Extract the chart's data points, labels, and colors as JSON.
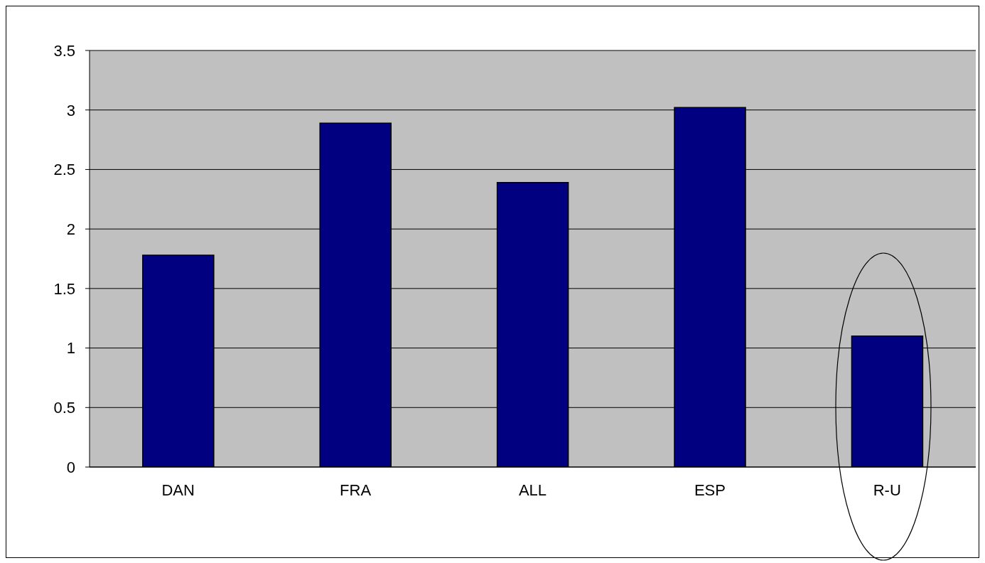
{
  "chart_data": {
    "type": "bar",
    "categories": [
      "DAN",
      "FRA",
      "ALL",
      "ESP",
      "R-U"
    ],
    "values": [
      1.78,
      2.89,
      2.39,
      3.02,
      1.1
    ],
    "color": "#000080",
    "ylim": [
      0,
      3.5
    ],
    "yticks": [
      0,
      0.5,
      1,
      1.5,
      2,
      2.5,
      3,
      3.5
    ],
    "grid": "y"
  }
}
